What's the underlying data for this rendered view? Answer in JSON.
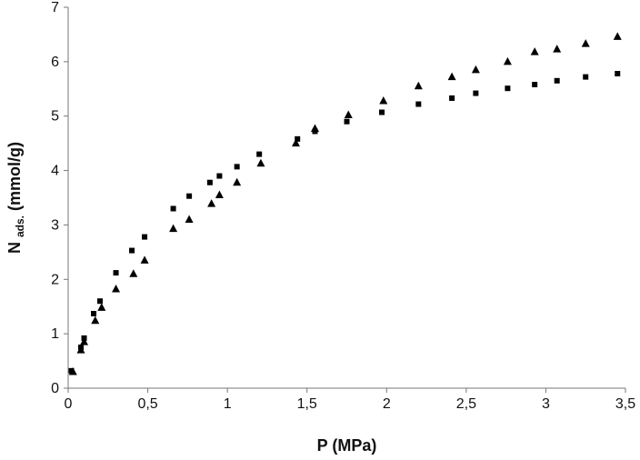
{
  "chart_data": {
    "type": "scatter",
    "title": "",
    "xlabel": "P (MPa)",
    "ylabel": {
      "main": "N",
      "subscript": "ads.",
      "suffix": " (mmol/g)"
    },
    "xlim": [
      0,
      3.5
    ],
    "ylim": [
      0,
      7
    ],
    "x_ticks": [
      0,
      0.5,
      1,
      1.5,
      2,
      2.5,
      3,
      3.5
    ],
    "x_tick_labels": [
      "0",
      "0,5",
      "1",
      "1,5",
      "2",
      "2,5",
      "3",
      "3,5"
    ],
    "y_ticks": [
      0,
      1,
      2,
      3,
      4,
      5,
      6,
      7
    ],
    "y_tick_labels": [
      "0",
      "1",
      "2",
      "3",
      "4",
      "5",
      "6",
      "7"
    ],
    "grid": false,
    "legend": "none",
    "series": [
      {
        "marker": "square",
        "color": "#000000",
        "points": [
          [
            0.02,
            0.32
          ],
          [
            0.08,
            0.75
          ],
          [
            0.1,
            0.92
          ],
          [
            0.16,
            1.37
          ],
          [
            0.2,
            1.6
          ],
          [
            0.3,
            2.12
          ],
          [
            0.4,
            2.53
          ],
          [
            0.48,
            2.78
          ],
          [
            0.66,
            3.3
          ],
          [
            0.76,
            3.53
          ],
          [
            0.89,
            3.78
          ],
          [
            0.95,
            3.9
          ],
          [
            1.06,
            4.07
          ],
          [
            1.2,
            4.3
          ],
          [
            1.44,
            4.58
          ],
          [
            1.55,
            4.72
          ],
          [
            1.75,
            4.9
          ],
          [
            1.97,
            5.07
          ],
          [
            2.2,
            5.22
          ],
          [
            2.41,
            5.33
          ],
          [
            2.56,
            5.42
          ],
          [
            2.76,
            5.51
          ],
          [
            2.93,
            5.58
          ],
          [
            3.07,
            5.65
          ],
          [
            3.25,
            5.72
          ],
          [
            3.45,
            5.78
          ]
        ]
      },
      {
        "marker": "triangle",
        "color": "#000000",
        "points": [
          [
            0.03,
            0.3
          ],
          [
            0.08,
            0.7
          ],
          [
            0.1,
            0.85
          ],
          [
            0.17,
            1.24
          ],
          [
            0.21,
            1.48
          ],
          [
            0.3,
            1.82
          ],
          [
            0.41,
            2.1
          ],
          [
            0.48,
            2.35
          ],
          [
            0.66,
            2.93
          ],
          [
            0.76,
            3.1
          ],
          [
            0.9,
            3.39
          ],
          [
            0.95,
            3.55
          ],
          [
            1.06,
            3.78
          ],
          [
            1.21,
            4.13
          ],
          [
            1.43,
            4.5
          ],
          [
            1.55,
            4.77
          ],
          [
            1.76,
            5.02
          ],
          [
            1.98,
            5.28
          ],
          [
            2.2,
            5.55
          ],
          [
            2.41,
            5.72
          ],
          [
            2.56,
            5.85
          ],
          [
            2.76,
            6.0
          ],
          [
            2.93,
            6.18
          ],
          [
            3.07,
            6.23
          ],
          [
            3.25,
            6.33
          ],
          [
            3.45,
            6.46
          ]
        ]
      }
    ]
  }
}
